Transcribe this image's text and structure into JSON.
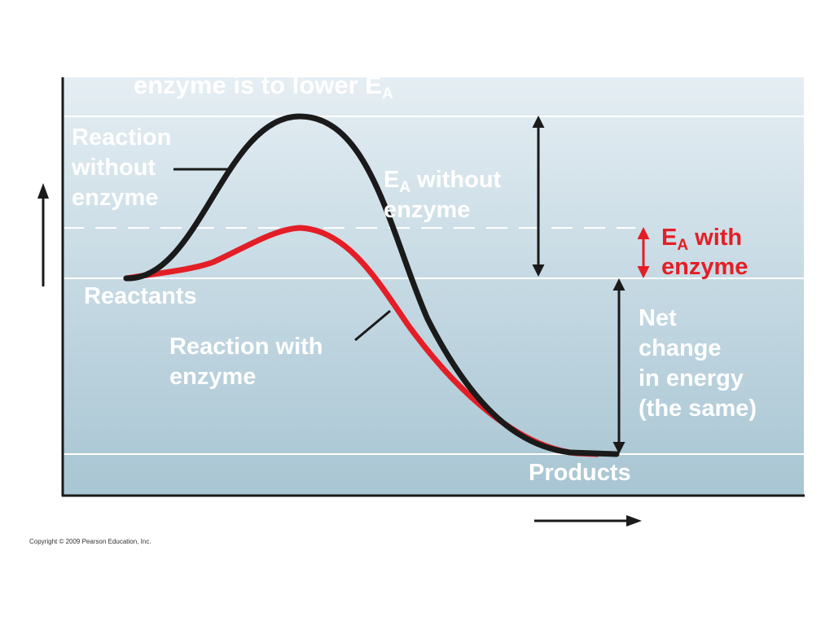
{
  "title": {
    "text": "enzyme is to lower E",
    "subscript": "A"
  },
  "labels": {
    "reaction_without_enzyme": [
      "Reaction",
      "without",
      "enzyme"
    ],
    "ea_without_enzyme": {
      "main": "E",
      "subscript": "A",
      "rest": " without",
      "line2": "enzyme"
    },
    "ea_with_enzyme": {
      "main": "E",
      "subscript": "A",
      "rest": " with",
      "line2": "enzyme"
    },
    "reactants": "Reactants",
    "reaction_with_enzyme": [
      "Reaction with",
      "enzyme"
    ],
    "net_change": [
      "Net",
      "change",
      "in energy",
      "(the same)"
    ],
    "products": "Products"
  },
  "copyright": "Copyright © 2009 Pearson Education, Inc.",
  "colors": {
    "curve_without_enzyme": "#1a1a1a",
    "curve_with_enzyme": "#e41e26",
    "label_text": "#ffffff",
    "ea_with_enzyme_text": "#e41e26",
    "plot_background_top": "#e4eef2",
    "plot_background_bottom": "#a9c6d4",
    "axis": "#1a1a1a"
  },
  "icons": {
    "y_axis_arrow": "arrow-up-icon",
    "x_axis_arrow": "arrow-right-icon",
    "ea_without_enzyme_arrow": "double-arrow-icon",
    "ea_with_enzyme_arrow": "double-arrow-icon",
    "net_change_arrow": "double-arrow-icon"
  }
}
